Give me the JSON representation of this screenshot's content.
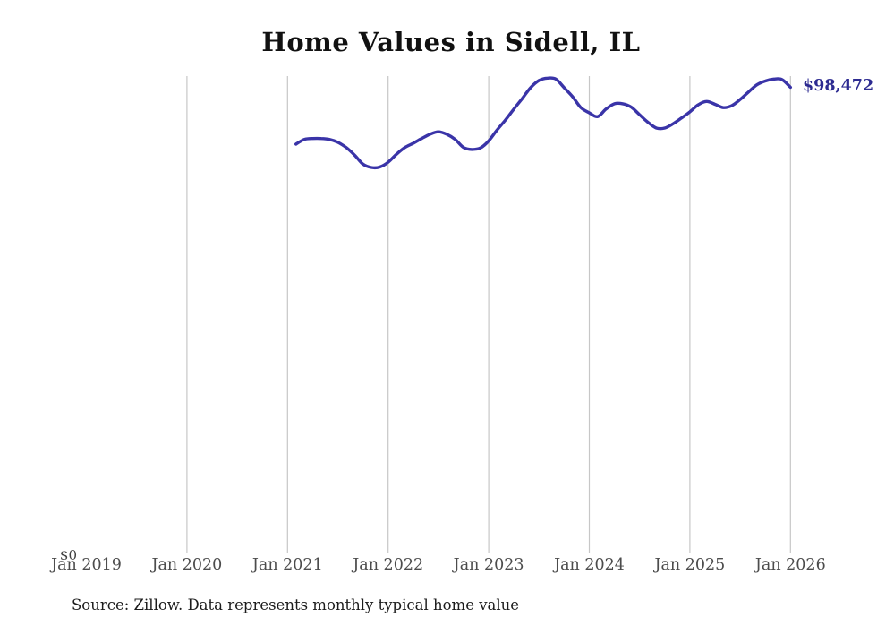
{
  "title": "Home Values in Sidell, IL",
  "end_value_label": "$98,472",
  "y_zero_label": "$0",
  "source_note": "Source: Zillow. Data represents monthly typical home value",
  "colors": {
    "line": "#3a34a8",
    "end_label": "#2d2b91",
    "grid": "#c7c7c7",
    "tick_text": "#4c4c4c",
    "title_text": "#111111",
    "source_text": "#1c1c1c",
    "background": "#ffffff"
  },
  "chart_data": {
    "type": "line",
    "title": "Home Values in Sidell, IL",
    "xlabel": "",
    "ylabel": "",
    "grid": "vertical-yearly",
    "legend": "none",
    "ylim": [
      0,
      101000
    ],
    "x_tick_labels": [
      "Jan 2019",
      "Jan 2020",
      "Jan 2021",
      "Jan 2022",
      "Jan 2023",
      "Jan 2024",
      "Jan 2025",
      "Jan 2026"
    ],
    "y_tick_labels": [
      "$0"
    ],
    "end_annotation": "$98,472",
    "series": [
      {
        "name": "Monthly typical home value (USD)",
        "start": "2021-02",
        "end": "2026-01",
        "frequency": "monthly",
        "dates": [
          "2021-02",
          "2021-03",
          "2021-04",
          "2021-05",
          "2021-06",
          "2021-07",
          "2021-08",
          "2021-09",
          "2021-10",
          "2021-11",
          "2021-12",
          "2022-01",
          "2022-02",
          "2022-03",
          "2022-04",
          "2022-05",
          "2022-06",
          "2022-07",
          "2022-08",
          "2022-09",
          "2022-10",
          "2022-11",
          "2022-12",
          "2023-01",
          "2023-02",
          "2023-03",
          "2023-04",
          "2023-05",
          "2023-06",
          "2023-07",
          "2023-08",
          "2023-09",
          "2023-10",
          "2023-11",
          "2023-12",
          "2024-01",
          "2024-02",
          "2024-03",
          "2024-04",
          "2024-05",
          "2024-06",
          "2024-07",
          "2024-08",
          "2024-09",
          "2024-10",
          "2024-11",
          "2024-12",
          "2025-01",
          "2025-02",
          "2025-03",
          "2025-04",
          "2025-05",
          "2025-06",
          "2025-07",
          "2025-08",
          "2025-09",
          "2025-10",
          "2025-11",
          "2025-12",
          "2026-01"
        ],
        "values": [
          86500,
          87500,
          87700,
          87700,
          87500,
          86900,
          85800,
          84200,
          82300,
          81600,
          81700,
          82700,
          84400,
          85800,
          86700,
          87700,
          88600,
          89100,
          88600,
          87500,
          85800,
          85400,
          85700,
          87200,
          89500,
          91600,
          93900,
          96100,
          98400,
          99900,
          100400,
          100200,
          98400,
          96500,
          94200,
          93100,
          92300,
          93900,
          95000,
          95000,
          94300,
          92700,
          91100,
          89900,
          89900,
          90800,
          92000,
          93300,
          94800,
          95500,
          94900,
          94200,
          94600,
          95900,
          97500,
          99000,
          99800,
          100200,
          100100,
          98472
        ]
      }
    ]
  }
}
